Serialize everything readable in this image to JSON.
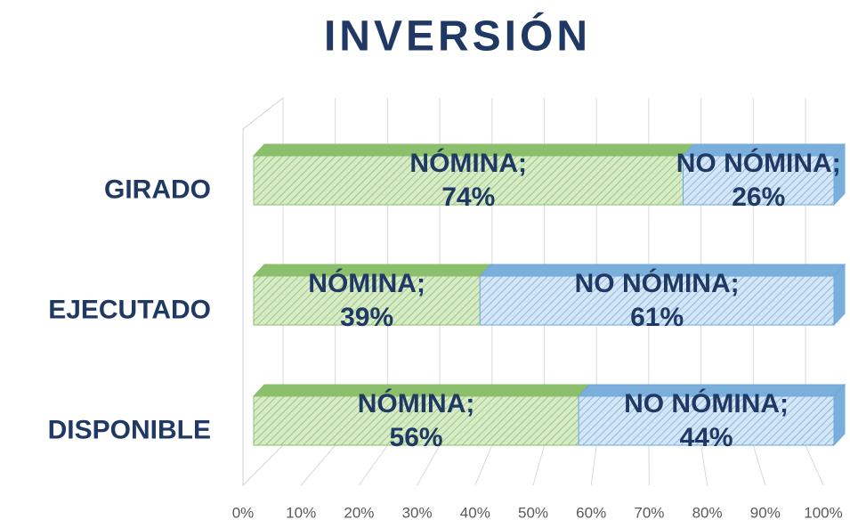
{
  "chart_data": {
    "type": "stacked-bar-horizontal-3d",
    "title": "INVERSIÓN",
    "categories": [
      "GIRADO",
      "EJECUTADO",
      "DISPONIBLE"
    ],
    "series": [
      {
        "name": "NÓMINA;",
        "color": "#a9d18e",
        "values": [
          74,
          39,
          56
        ],
        "value_labels": [
          "74%",
          "39%",
          "56%"
        ]
      },
      {
        "name": "NO NÓMINA;",
        "color": "#9dc3e6",
        "values": [
          26,
          61,
          44
        ],
        "value_labels": [
          "26%",
          "61%",
          "44%"
        ]
      }
    ],
    "xlim": [
      0,
      100
    ],
    "xticks": [
      {
        "value": 0,
        "label": "0%"
      },
      {
        "value": 10,
        "label": "10%"
      },
      {
        "value": 20,
        "label": "20%"
      },
      {
        "value": 30,
        "label": "30%"
      },
      {
        "value": 40,
        "label": "40%"
      },
      {
        "value": 50,
        "label": "50%"
      },
      {
        "value": 60,
        "label": "60%"
      },
      {
        "value": 70,
        "label": "70%"
      },
      {
        "value": 80,
        "label": "80%"
      },
      {
        "value": 90,
        "label": "90%"
      },
      {
        "value": 100,
        "label": "100%"
      }
    ],
    "grid": true
  }
}
